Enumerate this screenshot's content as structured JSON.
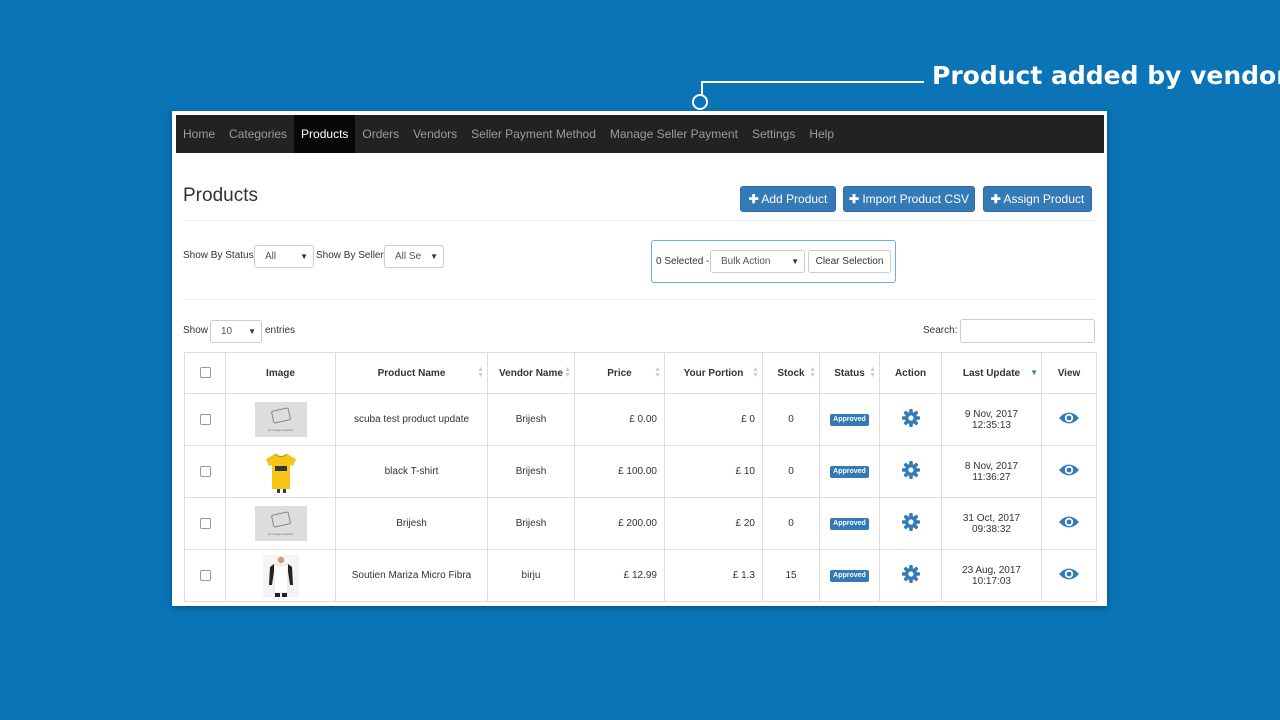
{
  "annotation": {
    "text": "Product added by vendor"
  },
  "nav": {
    "items": [
      "Home",
      "Categories",
      "Products",
      "Orders",
      "Vendors",
      "Seller Payment Method",
      "Manage Seller Payment",
      "Settings",
      "Help"
    ],
    "active": "Products"
  },
  "page": {
    "title": "Products"
  },
  "actions": {
    "add": "Add Product",
    "import": "Import Product CSV",
    "assign": "Assign Product"
  },
  "filters": {
    "status_label": "Show By Status",
    "status_value": "All",
    "seller_label": "Show By Seller",
    "seller_value": "All Se"
  },
  "bulk": {
    "selected": "0 Selected -",
    "action": "Bulk Action",
    "clear": "Clear Selection"
  },
  "list": {
    "show_label": "Show",
    "show_value": "10",
    "entries_label": "entries",
    "search_label": "Search:"
  },
  "table": {
    "headers": [
      "Image",
      "Product Name",
      "Vendor Name",
      "Price",
      "Your Portion",
      "Stock",
      "Status",
      "Action",
      "Last Update",
      "View"
    ],
    "rows": [
      {
        "image": "placeholder",
        "name": "scuba test product update",
        "vendor": "Brijesh",
        "price": "£ 0.00",
        "portion": "£ 0",
        "stock": "0",
        "status": "Approved",
        "date": "9 Nov, 2017",
        "time": "12:35:13"
      },
      {
        "image": "yellow-tshirt",
        "name": "black T-shirt",
        "vendor": "Brijesh",
        "price": "£ 100.00",
        "portion": "£ 10",
        "stock": "0",
        "status": "Approved",
        "date": "8 Nov, 2017",
        "time": "11:36:27"
      },
      {
        "image": "placeholder",
        "name": "Brijesh",
        "vendor": "Brijesh",
        "price": "£ 200.00",
        "portion": "£ 20",
        "stock": "0",
        "status": "Approved",
        "date": "31 Oct, 2017",
        "time": "09:38:32"
      },
      {
        "image": "raglan-tshirt",
        "name": "Soutien Mariza Micro Fibra",
        "vendor": "birju",
        "price": "£ 12.99",
        "portion": "£ 1.3",
        "stock": "15",
        "status": "Approved",
        "date": "23 Aug, 2017",
        "time": "10:17:03"
      }
    ]
  },
  "placeholder_image_text": "No Image Available",
  "colors": {
    "background": "#0a74b6",
    "primary": "#337ab7",
    "navbar": "#222222"
  }
}
